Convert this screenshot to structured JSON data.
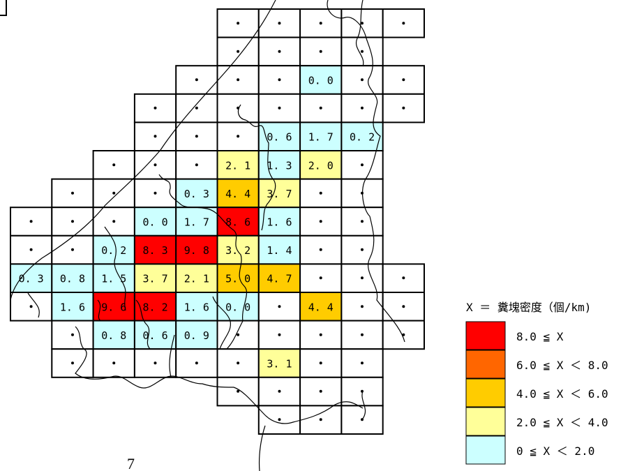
{
  "legend": {
    "title": "X ＝ 糞塊密度（個/km)",
    "items": [
      {
        "label": "8.0 ≦ X",
        "color": "#ff0000"
      },
      {
        "label": "6.0 ≦ X ＜ 8.0",
        "color": "#ff6600"
      },
      {
        "label": "4.0 ≦ X ＜ 6.0",
        "color": "#ffcc00"
      },
      {
        "label": "2.0 ≦ X ＜ 4.0",
        "color": "#ffff99"
      },
      {
        "label": "0 ≦ X ＜ 2.0",
        "color": "#ccffff"
      }
    ]
  },
  "page_number": "7",
  "empty_mark": "・",
  "grid_rows": [
    {
      "row": 0,
      "cells": [
        {
          "c": 5
        },
        {
          "c": 6
        },
        {
          "c": 7
        },
        {
          "c": 8
        },
        {
          "c": 9
        }
      ]
    },
    {
      "row": 1,
      "cells": [
        {
          "c": 5
        },
        {
          "c": 6
        },
        {
          "c": 7
        },
        {
          "c": 8
        }
      ]
    },
    {
      "row": 2,
      "cells": [
        {
          "c": 4
        },
        {
          "c": 5
        },
        {
          "c": 6
        },
        {
          "c": 7,
          "v": "0.0"
        },
        {
          "c": 8
        },
        {
          "c": 9
        }
      ]
    },
    {
      "row": 3,
      "cells": [
        {
          "c": 3
        },
        {
          "c": 4
        },
        {
          "c": 5
        },
        {
          "c": 6
        },
        {
          "c": 7
        },
        {
          "c": 8
        },
        {
          "c": 9
        }
      ]
    },
    {
      "row": 4,
      "cells": [
        {
          "c": 3
        },
        {
          "c": 4
        },
        {
          "c": 5
        },
        {
          "c": 6,
          "v": "0.6"
        },
        {
          "c": 7,
          "v": "1.7"
        },
        {
          "c": 8,
          "v": "0.2"
        }
      ]
    },
    {
      "row": 5,
      "cells": [
        {
          "c": 2
        },
        {
          "c": 3
        },
        {
          "c": 4
        },
        {
          "c": 5,
          "v": "2.1"
        },
        {
          "c": 6,
          "v": "1.3"
        },
        {
          "c": 7,
          "v": "2.0"
        },
        {
          "c": 8
        }
      ]
    },
    {
      "row": 6,
      "cells": [
        {
          "c": 1
        },
        {
          "c": 2
        },
        {
          "c": 3
        },
        {
          "c": 4,
          "v": "0.3"
        },
        {
          "c": 5,
          "v": "4.4"
        },
        {
          "c": 6,
          "v": "3.7"
        },
        {
          "c": 7
        },
        {
          "c": 8
        }
      ]
    },
    {
      "row": 7,
      "cells": [
        {
          "c": 0
        },
        {
          "c": 1
        },
        {
          "c": 2
        },
        {
          "c": 3,
          "v": "0.0"
        },
        {
          "c": 4,
          "v": "1.7"
        },
        {
          "c": 5,
          "v": "8.6"
        },
        {
          "c": 6,
          "v": "1.6"
        },
        {
          "c": 7
        },
        {
          "c": 8
        }
      ]
    },
    {
      "row": 8,
      "cells": [
        {
          "c": 0
        },
        {
          "c": 1
        },
        {
          "c": 2,
          "v": "0.2"
        },
        {
          "c": 3,
          "v": "8.3"
        },
        {
          "c": 4,
          "v": "9.8"
        },
        {
          "c": 5,
          "v": "3.2"
        },
        {
          "c": 6,
          "v": "1.4"
        },
        {
          "c": 7
        },
        {
          "c": 8
        }
      ]
    },
    {
      "row": 9,
      "cells": [
        {
          "c": 0,
          "v": "0.3"
        },
        {
          "c": 1,
          "v": "0.8"
        },
        {
          "c": 2,
          "v": "1.5"
        },
        {
          "c": 3,
          "v": "3.7"
        },
        {
          "c": 4,
          "v": "2.1"
        },
        {
          "c": 5,
          "v": "5.0"
        },
        {
          "c": 6,
          "v": "4.7"
        },
        {
          "c": 7
        },
        {
          "c": 8
        },
        {
          "c": 9
        }
      ]
    },
    {
      "row": 10,
      "cells": [
        {
          "c": 0
        },
        {
          "c": 1,
          "v": "1.6"
        },
        {
          "c": 2,
          "v": "9.6"
        },
        {
          "c": 3,
          "v": "8.2"
        },
        {
          "c": 4,
          "v": "1.6"
        },
        {
          "c": 5,
          "v": "0.0"
        },
        {
          "c": 6
        },
        {
          "c": 7,
          "v": "4.4"
        },
        {
          "c": 8
        },
        {
          "c": 9
        }
      ]
    },
    {
      "row": 11,
      "cells": [
        {
          "c": 1
        },
        {
          "c": 2,
          "v": "0.8"
        },
        {
          "c": 3,
          "v": "0.6"
        },
        {
          "c": 4,
          "v": "0.9"
        },
        {
          "c": 5
        },
        {
          "c": 6
        },
        {
          "c": 7
        },
        {
          "c": 8
        },
        {
          "c": 9
        }
      ]
    },
    {
      "row": 12,
      "cells": [
        {
          "c": 1
        },
        {
          "c": 2
        },
        {
          "c": 3
        },
        {
          "c": 4
        },
        {
          "c": 5
        },
        {
          "c": 6,
          "v": "3.1"
        },
        {
          "c": 7
        },
        {
          "c": 8
        }
      ]
    },
    {
      "row": 13,
      "cells": [
        {
          "c": 5
        },
        {
          "c": 6
        },
        {
          "c": 7
        },
        {
          "c": 8
        }
      ]
    },
    {
      "row": 14,
      "cells": [
        {
          "c": 6
        },
        {
          "c": 7
        },
        {
          "c": 8
        }
      ]
    }
  ]
}
